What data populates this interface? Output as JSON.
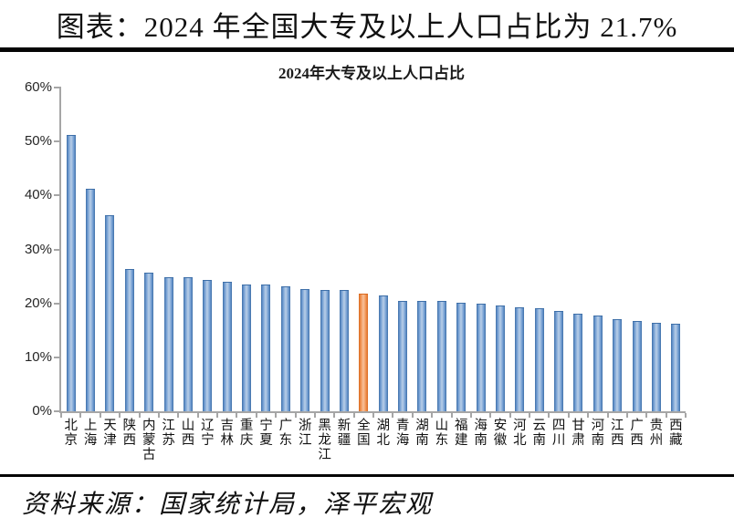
{
  "header": {
    "title": "图表：2024 年全国大专及以上人口占比为 21.7%"
  },
  "footer": {
    "source": "资料来源：国家统计局，泽平宏观"
  },
  "chart_data": {
    "type": "bar",
    "title": "2024年大专及以上人口占比",
    "categories": [
      "北京",
      "上海",
      "天津",
      "陕西",
      "内蒙古",
      "江苏",
      "山西",
      "辽宁",
      "吉林",
      "重庆",
      "宁夏",
      "广东",
      "浙江",
      "黑龙江",
      "新疆",
      "全国",
      "湖北",
      "青海",
      "湖南",
      "山东",
      "福建",
      "海南",
      "安徽",
      "河北",
      "云南",
      "四川",
      "甘肃",
      "河南",
      "江西",
      "广西",
      "贵州",
      "西藏"
    ],
    "values": [
      51.0,
      41.0,
      36.1,
      26.2,
      25.6,
      24.7,
      24.6,
      24.1,
      23.8,
      23.4,
      23.4,
      23.0,
      22.4,
      22.3,
      22.3,
      21.7,
      21.3,
      20.3,
      20.2,
      20.2,
      19.9,
      19.8,
      19.4,
      19.1,
      19.0,
      18.4,
      18.0,
      17.6,
      16.9,
      16.6,
      16.2,
      16.0
    ],
    "highlight_category": "全国",
    "highlight_index": 15,
    "xlabel": "",
    "ylabel": "",
    "ylim": [
      0,
      60
    ],
    "ytick_step": 10,
    "ytick_labels": [
      "0%",
      "10%",
      "20%",
      "30%",
      "40%",
      "50%",
      "60%"
    ],
    "grid": false,
    "legend": "none",
    "colors": {
      "bar": "#4F81BD",
      "highlight": "#ED7D31",
      "axis": "#A6A6A6"
    }
  }
}
